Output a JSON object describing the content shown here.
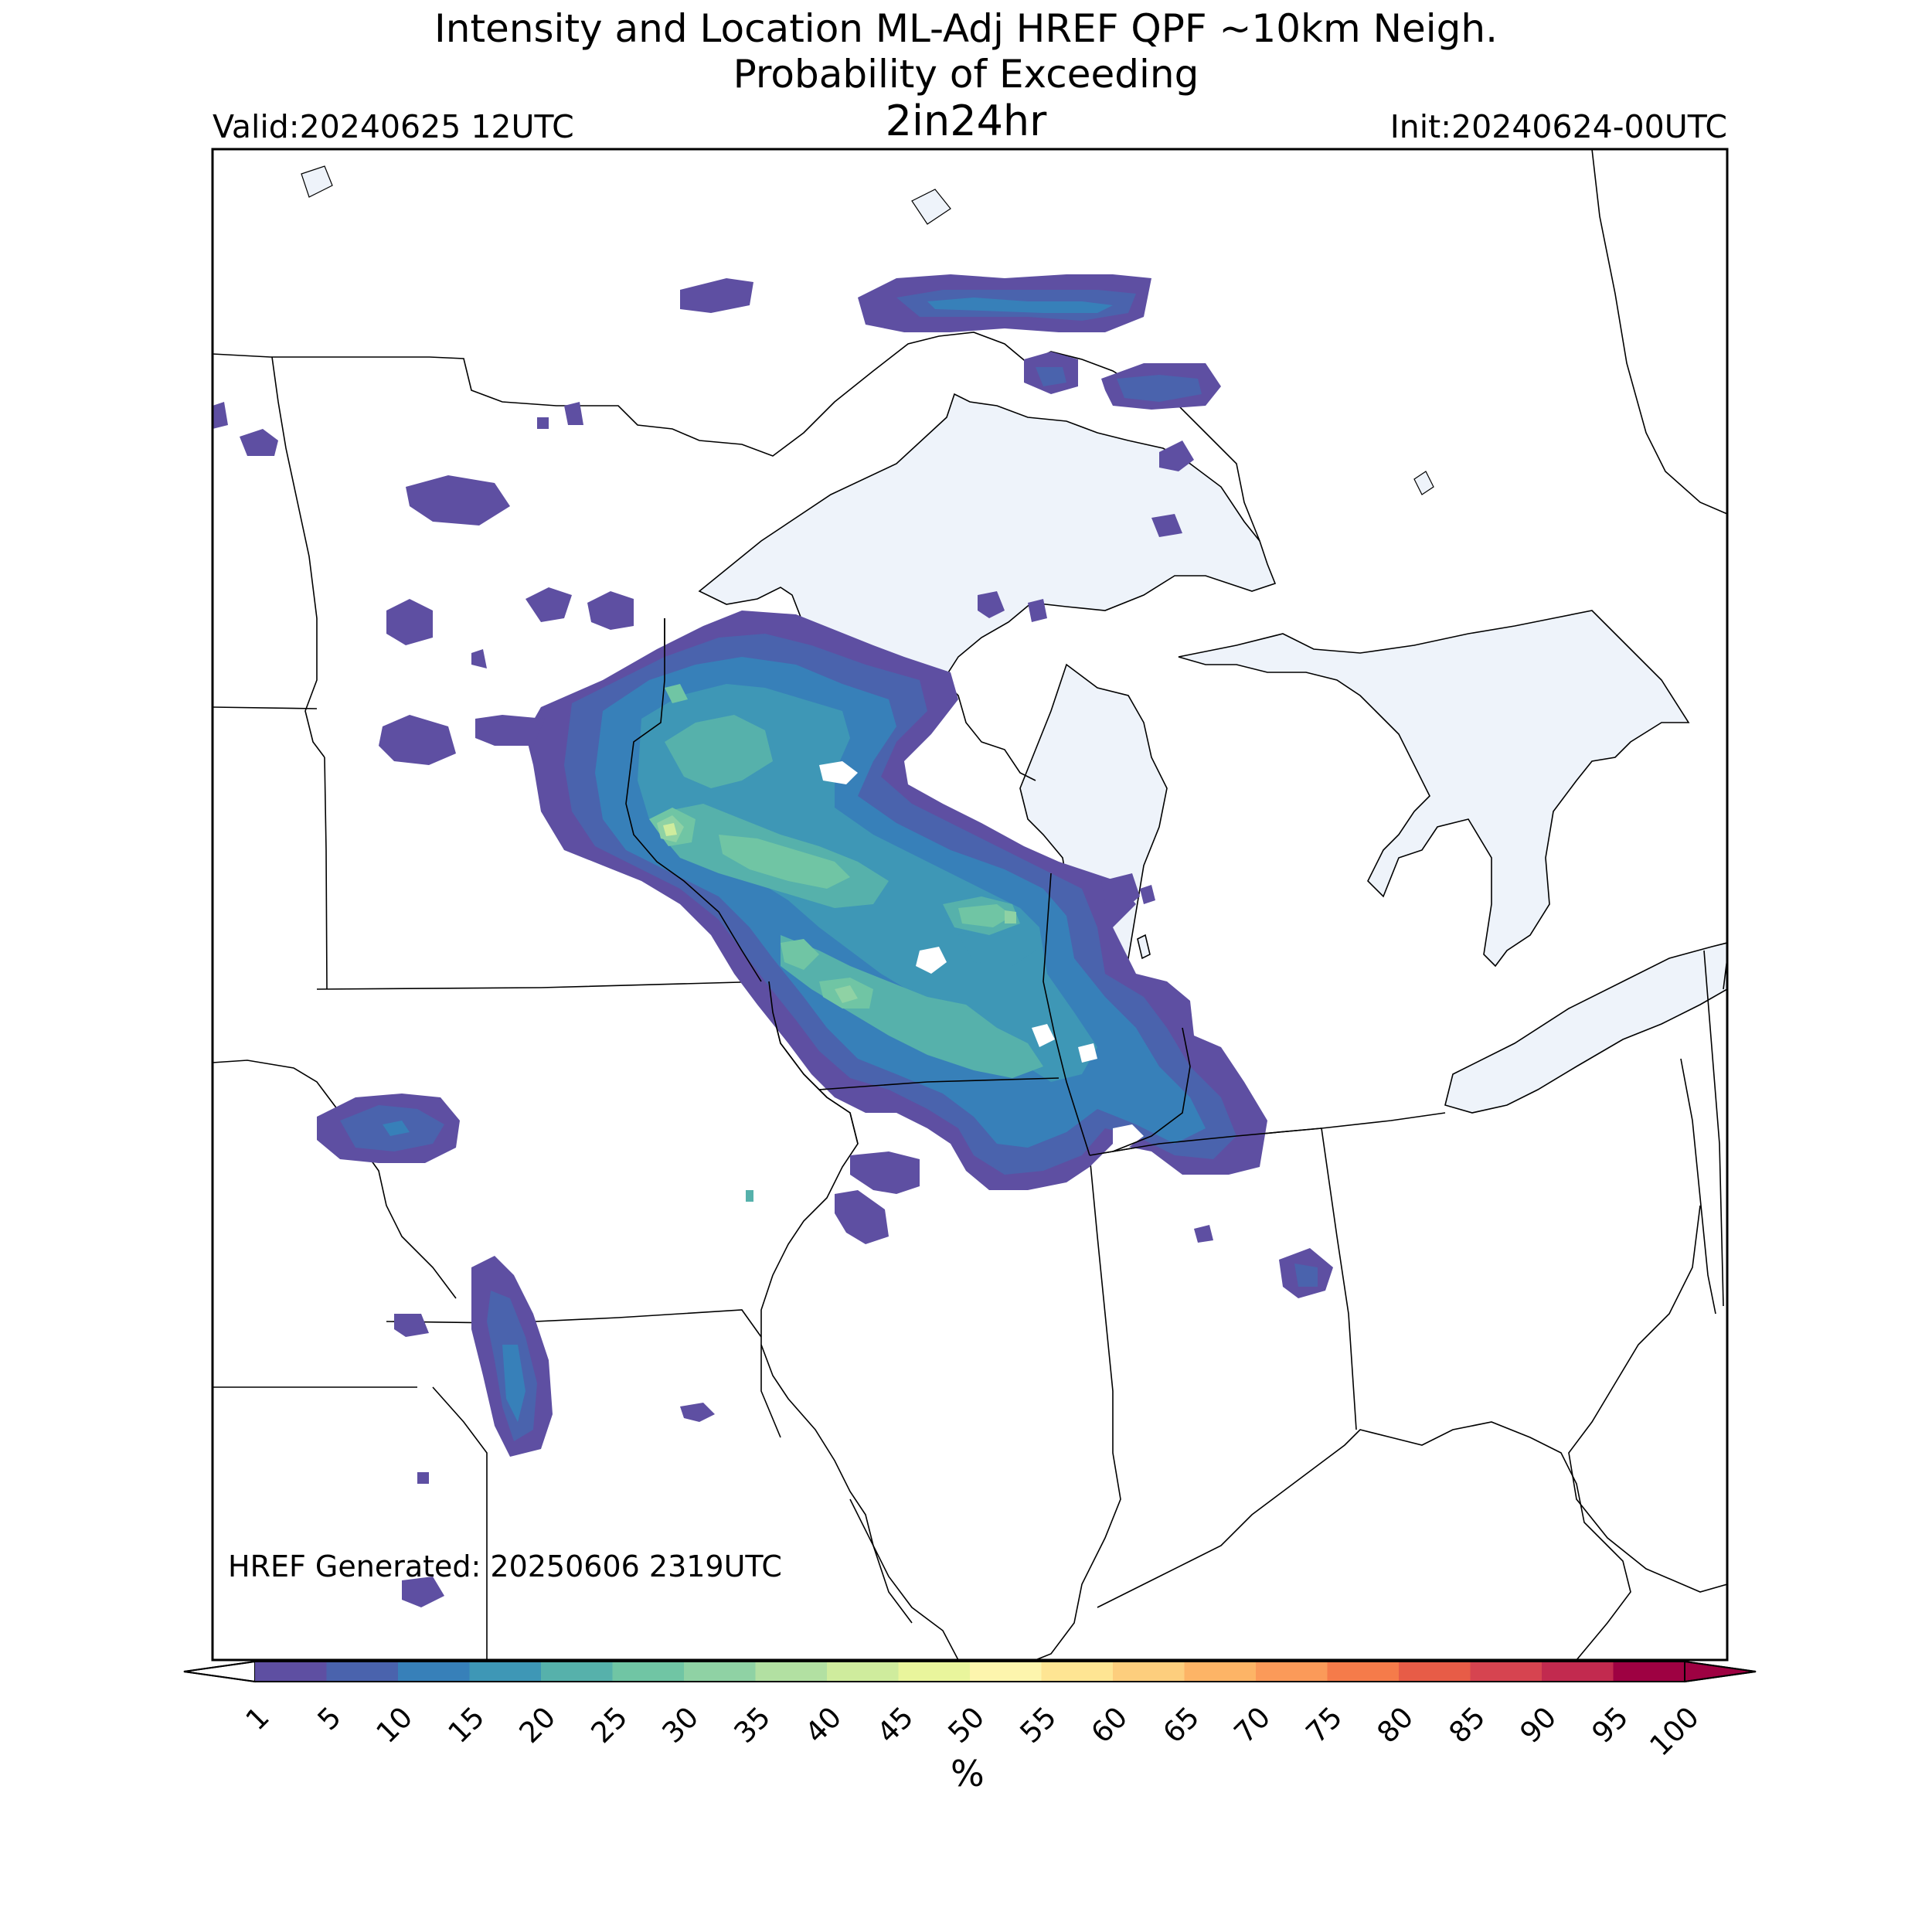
{
  "title": {
    "line1": "Intensity and Location ML-Adj HREF QPF ~10km Neigh.",
    "line2": "Probability of Exceeding",
    "line3": "2in24hr"
  },
  "valid_label": "Valid:20240625 12UTC",
  "init_label": "Init:20240624-00UTC",
  "generated_label": "HREF Generated: 20250606 2319UTC",
  "colorbar": {
    "unit": "%",
    "ticks": [
      "1",
      "5",
      "10",
      "15",
      "20",
      "25",
      "30",
      "35",
      "40",
      "45",
      "50",
      "55",
      "60",
      "65",
      "70",
      "75",
      "80",
      "85",
      "90",
      "95",
      "100"
    ],
    "colors": [
      "#5e4fa2",
      "#4a63ad",
      "#3780b9",
      "#3e97b6",
      "#56b1ab",
      "#70c5a4",
      "#8fd2a4",
      "#b2e0a2",
      "#cfec9d",
      "#e9f59c",
      "#fdf5ad",
      "#fee593",
      "#fdce7d",
      "#fdb466",
      "#fb9a59",
      "#f57b4a",
      "#e75c47",
      "#d64450",
      "#c22a4f",
      "#9e0142"
    ],
    "over_color": "#9e0142",
    "under_color": "#ffffff"
  },
  "colors": {
    "lake_fill": "#eef3fa",
    "border": "#000000"
  }
}
